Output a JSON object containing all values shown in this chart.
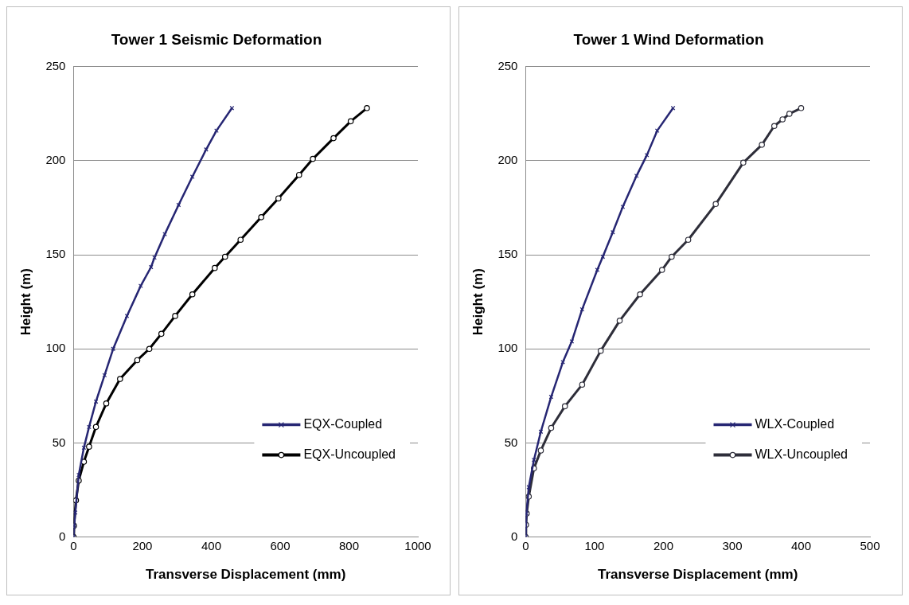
{
  "chart_data": [
    {
      "type": "line",
      "title": "Tower 1 Seismic Deformation",
      "xlabel": "Transverse Displacement (mm)",
      "ylabel": "Height (m)",
      "xlim": [
        0,
        1000
      ],
      "xticks": [
        0,
        200,
        400,
        600,
        800,
        1000
      ],
      "ylim": [
        0,
        250
      ],
      "yticks": [
        0,
        50,
        100,
        150,
        200,
        250
      ],
      "grid": "y",
      "legend": "bottom right",
      "series": [
        {
          "name": "EQX-Coupled",
          "color": "#262673",
          "marker": "cross",
          "x": [
            0,
            2,
            5,
            15,
            30,
            45,
            65,
            90,
            115,
            155,
            195,
            225,
            235,
            265,
            305,
            345,
            385,
            415,
            460
          ],
          "values": [
            0,
            6,
            13,
            33,
            47.5,
            58.5,
            72,
            86,
            100,
            117.5,
            133.5,
            143.5,
            148.5,
            161,
            176.5,
            191.5,
            206,
            216,
            228
          ]
        },
        {
          "name": "EQX-Uncoupled",
          "color": "#000000",
          "marker": "circle",
          "x": [
            0,
            1,
            7,
            15,
            30,
            45,
            65,
            95,
            135,
            185,
            220,
            255,
            295,
            345,
            410,
            440,
            485,
            545,
            595,
            655,
            695,
            755,
            805,
            852
          ],
          "values": [
            0,
            6,
            19.5,
            30,
            40,
            48,
            58.5,
            71,
            84,
            94,
            100,
            108,
            117.5,
            129,
            143,
            149,
            158,
            170,
            180,
            192.5,
            201,
            212,
            221,
            228
          ]
        }
      ]
    },
    {
      "type": "line",
      "title": "Tower 1 Wind Deformation",
      "xlabel": "Transverse Displacement (mm)",
      "ylabel": "Height (m)",
      "xlim": [
        0,
        500
      ],
      "xticks": [
        0,
        100,
        200,
        300,
        400,
        500
      ],
      "ylim": [
        0,
        250
      ],
      "yticks": [
        0,
        50,
        100,
        150,
        200,
        250
      ],
      "grid": "y",
      "legend": "bottom right",
      "series": [
        {
          "name": "WLX-Coupled",
          "color": "#262673",
          "marker": "cross",
          "x": [
            0,
            1,
            4.5,
            12,
            22,
            37,
            54,
            67,
            82,
            104,
            112,
            126.5,
            141,
            161,
            176,
            191,
            214
          ],
          "values": [
            0,
            12.5,
            26.5,
            41,
            56,
            74.5,
            93,
            104,
            121,
            142,
            149,
            162,
            175.5,
            192,
            203,
            216,
            228
          ]
        },
        {
          "name": "WLX-Uncoupled",
          "color": "#2e2e3a",
          "marker": "circle",
          "x": [
            0,
            0.5,
            1.5,
            4.5,
            12,
            22,
            37,
            57,
            82,
            109,
            136.5,
            166,
            198,
            212,
            236,
            276,
            316,
            343,
            361,
            373,
            383,
            400
          ],
          "values": [
            0,
            6.5,
            12.5,
            21.5,
            36.5,
            46,
            58,
            69.5,
            81,
            99,
            115,
            129,
            142,
            149,
            158,
            177,
            199,
            208.5,
            218.5,
            222,
            225,
            228
          ]
        }
      ]
    }
  ]
}
